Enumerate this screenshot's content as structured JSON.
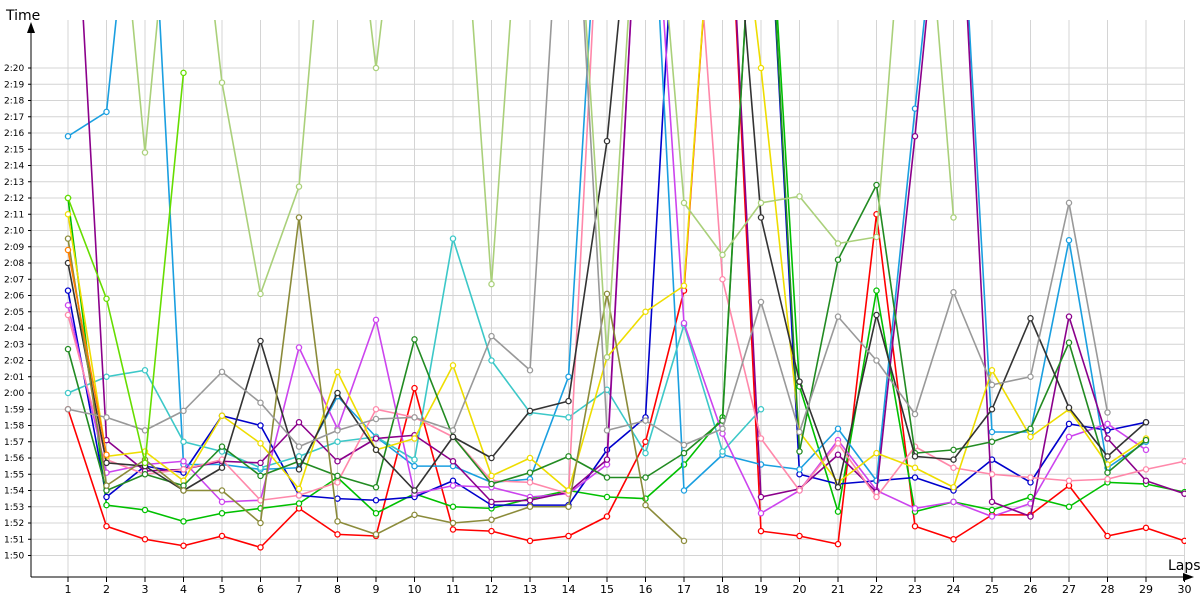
{
  "chart_data": {
    "type": "line",
    "xlabel": "Laps",
    "ylabel": "Time",
    "x": [
      1,
      2,
      3,
      4,
      5,
      6,
      7,
      8,
      9,
      10,
      11,
      12,
      13,
      14,
      15,
      16,
      17,
      18,
      19,
      20,
      21,
      22,
      23,
      24,
      25,
      26,
      27,
      28,
      29,
      30
    ],
    "x_tick_labels": [
      "1",
      "2",
      "3",
      "4",
      "5",
      "6",
      "7",
      "8",
      "9",
      "10",
      "11",
      "12",
      "13",
      "14",
      "15",
      "16",
      "17",
      "18",
      "19",
      "20",
      "21",
      "22",
      "23",
      "24",
      "25",
      "26",
      "27",
      "28",
      "29",
      "30"
    ],
    "y_tick_labels": [
      "1:50",
      "1:51",
      "1:52",
      "1:53",
      "1:54",
      "1:55",
      "1:56",
      "1:57",
      "1:58",
      "1:59",
      "2:00",
      "2:01",
      "2:02",
      "2:03",
      "2:04",
      "2:05",
      "2:06",
      "2:07",
      "2:08",
      "2:09",
      "2:10",
      "2:11",
      "2:12",
      "2:13",
      "2:14",
      "2:15",
      "2:16",
      "2:17",
      "2:18",
      "2:19",
      "2:20"
    ],
    "ylim_seconds": [
      110,
      141
    ],
    "grid": true,
    "series": [
      {
        "color": "#ff0000",
        "values": [
          119,
          111.8,
          111,
          110.6,
          111.2,
          110.5,
          112.9,
          111.3,
          111.2,
          120.3,
          111.6,
          111.5,
          110.9,
          111.2,
          112.4,
          117,
          126.3,
          160,
          111.5,
          111.2,
          110.7,
          131,
          111.8,
          111,
          112.5,
          112.5,
          114.3,
          111.2,
          111.7,
          110.9
        ]
      },
      {
        "color": "#00c000",
        "values": [
          132,
          113.1,
          112.8,
          112.1,
          112.6,
          112.9,
          113.2,
          114.8,
          112.6,
          113.8,
          113,
          112.9,
          113.5,
          114,
          113.6,
          113.5,
          115.6,
          118.5,
          160,
          120.4,
          112.7,
          126.3,
          112.7,
          113.3,
          112.8,
          113.6,
          113,
          114.5,
          114.4,
          113.9
        ]
      },
      {
        "color": "#0000cc",
        "values": [
          126.3,
          113.6,
          115.5,
          115.1,
          118.6,
          118,
          113.7,
          113.5,
          113.4,
          113.6,
          114.6,
          113.1,
          113.1,
          113.1,
          116.5,
          118.5,
          160,
          160,
          160,
          115,
          114.4,
          114.6,
          114.8,
          114,
          115.9,
          114.5,
          118.1,
          117.7,
          118.2,
          null
        ]
      },
      {
        "color": "#1a9fe0",
        "values": [
          135.8,
          137.3,
          160,
          115.6,
          115.6,
          115.3,
          115.4,
          119.8,
          117.3,
          115.5,
          115.5,
          114.5,
          114.7,
          121,
          160,
          160,
          114,
          116.2,
          115.6,
          115.3,
          117.8,
          114.6,
          137.5,
          160,
          117.6,
          117.6,
          129.4,
          115.4,
          117,
          null
        ]
      },
      {
        "color": "#3cc8c8",
        "values": [
          120,
          121,
          121.4,
          117,
          116.4,
          115.4,
          116.1,
          117,
          117.3,
          115.9,
          129.5,
          122,
          118.8,
          118.5,
          120.2,
          116.3,
          124.2,
          116.4,
          119,
          null,
          null,
          null,
          null,
          null,
          null,
          null,
          null,
          null,
          null,
          null
        ]
      },
      {
        "color": "#cc44ee",
        "values": [
          125.4,
          115.1,
          115.6,
          115.8,
          113.3,
          113.4,
          122.8,
          117.8,
          124.5,
          113.8,
          114.3,
          114.2,
          113.6,
          113.8,
          115.6,
          160,
          124.3,
          117.5,
          112.6,
          114,
          117.1,
          114,
          112.9,
          113.3,
          112.4,
          113.2,
          117.3,
          118.1,
          116.5,
          null
        ]
      },
      {
        "color": "#8b008b",
        "values": [
          160,
          117.1,
          115.2,
          115.3,
          115.8,
          115.7,
          118.2,
          115.8,
          117.2,
          117.4,
          115.8,
          113.3,
          113.4,
          113.9,
          115.9,
          160,
          159,
          160,
          113.6,
          114.1,
          116.2,
          113.9,
          135.8,
          160,
          113.3,
          112.4,
          124.7,
          117.2,
          114.6,
          113.8
        ]
      },
      {
        "color": "#ff88aa",
        "values": [
          124.8,
          115.9,
          115,
          115.3,
          115.9,
          113.4,
          113.7,
          114.5,
          119,
          118.5,
          117.3,
          114.6,
          114.5,
          113.8,
          160,
          160,
          160,
          127,
          117.2,
          114,
          116.9,
          113.6,
          116.7,
          115.4,
          115,
          114.8,
          114.6,
          114.7,
          115.3,
          115.8
        ]
      },
      {
        "color": "#eedd00",
        "values": [
          131,
          116.1,
          116.4,
          114.6,
          118.6,
          116.9,
          114.1,
          121.3,
          116.5,
          117.2,
          121.7,
          114.9,
          116,
          114,
          122.2,
          125,
          126.6,
          160,
          140,
          117.6,
          114.5,
          116.3,
          115.4,
          114.2,
          121.4,
          117.3,
          119,
          115.6,
          117.2,
          null
        ]
      },
      {
        "color": "#228b22",
        "values": [
          122.7,
          114,
          115,
          114.3,
          116.7,
          114.9,
          115.8,
          114.9,
          114.2,
          123.3,
          117.3,
          114.4,
          115.1,
          116.1,
          114.8,
          114.8,
          116.3,
          118.3,
          160,
          116.4,
          128.2,
          132.8,
          116.3,
          116.5,
          117,
          117.8,
          123.1,
          115.1,
          117.1,
          null
        ]
      },
      {
        "color": "#333333",
        "values": [
          128,
          115.7,
          115.5,
          114,
          115.4,
          123.2,
          115.3,
          120,
          116.5,
          114,
          117.3,
          116,
          118.9,
          119.5,
          135.5,
          160,
          160,
          160,
          130.8,
          120.7,
          114.2,
          124.8,
          116.1,
          115.9,
          119,
          124.6,
          119.1,
          116.1,
          118.2,
          null
        ]
      },
      {
        "color": "#8b8b3a",
        "values": [
          129.5,
          114.3,
          115.9,
          114,
          114,
          112,
          130.8,
          112.1,
          111.3,
          112.5,
          112,
          112.2,
          113,
          113,
          126.1,
          113.1,
          110.9,
          null,
          null,
          null,
          null,
          null,
          null,
          null,
          null,
          null,
          null,
          null,
          null,
          null
        ]
      },
      {
        "color": "#999999",
        "values": [
          119,
          118.5,
          117.7,
          118.9,
          121.3,
          119.4,
          116.7,
          117.7,
          118.4,
          118.5,
          117.7,
          123.5,
          121.4,
          160,
          117.7,
          118.3,
          116.8,
          117.8,
          125.6,
          117.6,
          124.7,
          122,
          118.7,
          126.2,
          120.5,
          121,
          131.7,
          118.8,
          null,
          null
        ]
      },
      {
        "color": "#aad07a",
        "values": [
          160,
          160,
          134.8,
          160,
          139.1,
          126.1,
          132.7,
          160,
          140,
          160,
          160,
          126.7,
          160,
          160,
          122.2,
          160,
          131.7,
          128.5,
          131.7,
          132.1,
          129.2,
          129.6,
          160,
          130.8,
          null,
          null,
          null,
          null,
          null,
          null
        ]
      },
      {
        "color": "#66dd00",
        "values": [
          132,
          125.8,
          115.7,
          139.7,
          null,
          null,
          null,
          null,
          null,
          null,
          null,
          null,
          null,
          null,
          null,
          null,
          null,
          null,
          null,
          null,
          null,
          null,
          null,
          null,
          null,
          null,
          null,
          null,
          null,
          null
        ]
      },
      {
        "color": "#ff7f00",
        "values": [
          128.8,
          116.2,
          null,
          null,
          null,
          null,
          null,
          null,
          null,
          null,
          null,
          null,
          null,
          null,
          null,
          null,
          null,
          null,
          null,
          null,
          null,
          null,
          null,
          null,
          null,
          null,
          null,
          null,
          null,
          null
        ]
      }
    ]
  }
}
